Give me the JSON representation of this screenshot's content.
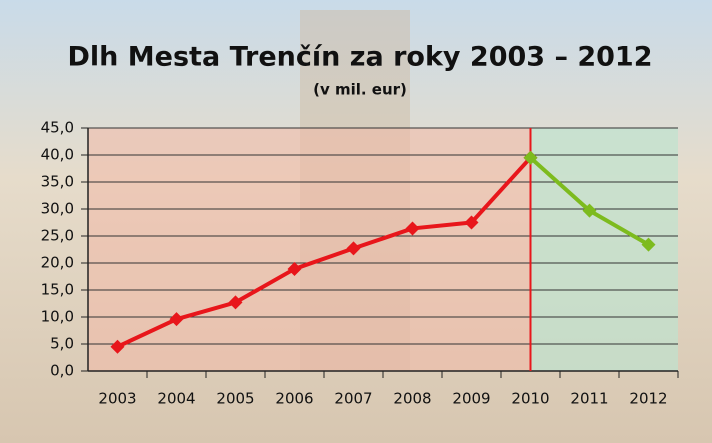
{
  "chart_data": {
    "type": "line",
    "title": "Dlh Mesta Trenčín za roky 2003 – 2012",
    "subtitle": "(v mil. eur)",
    "categories": [
      "2003",
      "2004",
      "2005",
      "2006",
      "2007",
      "2008",
      "2009",
      "2010",
      "2011",
      "2012"
    ],
    "series": [
      {
        "color": "#e8161b",
        "values": [
          4.5,
          9.6,
          12.7,
          18.9,
          22.7,
          26.4,
          27.5,
          39.5,
          null,
          null
        ]
      },
      {
        "color": "#7dbb1e",
        "values": [
          null,
          null,
          null,
          null,
          null,
          null,
          null,
          39.5,
          29.7,
          23.4
        ]
      }
    ],
    "ylim": [
      0,
      45
    ],
    "yticks": [
      {
        "value": 0,
        "label": "0,0"
      },
      {
        "value": 5,
        "label": "5,0"
      },
      {
        "value": 10,
        "label": "10,0"
      },
      {
        "value": 15,
        "label": "15,0"
      },
      {
        "value": 20,
        "label": "20,0"
      },
      {
        "value": 25,
        "label": "25,0"
      },
      {
        "value": 30,
        "label": "30,0"
      },
      {
        "value": 35,
        "label": "35,0"
      },
      {
        "value": 40,
        "label": "40,0"
      },
      {
        "value": 45,
        "label": "45,0"
      }
    ],
    "grid": true
  }
}
